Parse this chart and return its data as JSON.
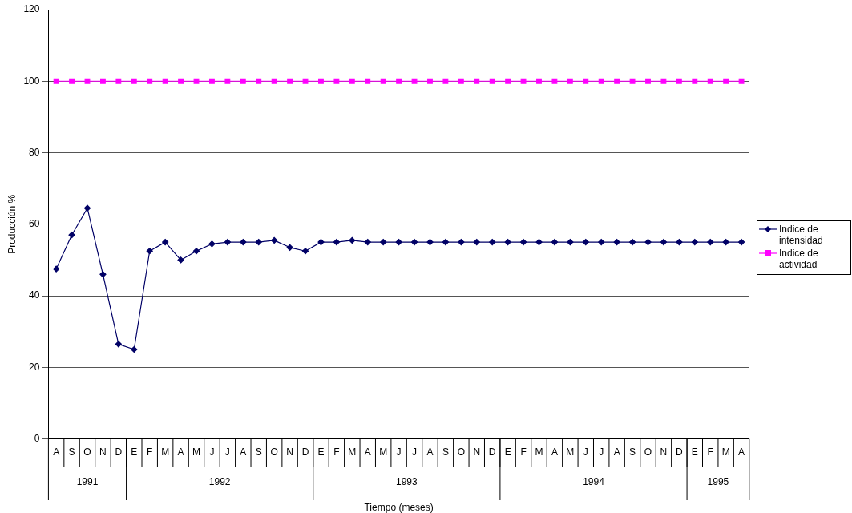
{
  "chart_data": {
    "type": "line",
    "xlabel": "Tiempo (meses)",
    "ylabel": "Producción %",
    "categories": [
      "A",
      "S",
      "O",
      "N",
      "D",
      "E",
      "F",
      "M",
      "A",
      "M",
      "J",
      "J",
      "A",
      "S",
      "O",
      "N",
      "D",
      "E",
      "F",
      "M",
      "A",
      "M",
      "J",
      "J",
      "A",
      "S",
      "O",
      "N",
      "D",
      "E",
      "F",
      "M",
      "A",
      "M",
      "J",
      "J",
      "A",
      "S",
      "O",
      "N",
      "D",
      "E",
      "F",
      "M",
      "A"
    ],
    "series": [
      {
        "name": "Indice de intensidad",
        "color": "#000066",
        "marker": "diamond",
        "values": [
          47.5,
          57,
          64.5,
          46,
          26.5,
          25,
          52.5,
          55,
          50,
          52.5,
          54.5,
          55,
          55,
          55,
          55.5,
          53.5,
          52.5,
          55,
          55,
          55.5,
          55,
          55,
          55,
          55,
          55,
          55,
          55,
          55,
          55,
          55,
          55,
          55,
          55,
          55,
          55,
          55,
          55,
          55,
          55,
          55,
          55,
          55,
          55,
          55,
          55
        ]
      },
      {
        "name": "Indice de actividad",
        "color": "#ff00ff",
        "marker": "square",
        "values": [
          100,
          100,
          100,
          100,
          100,
          100,
          100,
          100,
          100,
          100,
          100,
          100,
          100,
          100,
          100,
          100,
          100,
          100,
          100,
          100,
          100,
          100,
          100,
          100,
          100,
          100,
          100,
          100,
          100,
          100,
          100,
          100,
          100,
          100,
          100,
          100,
          100,
          100,
          100,
          100,
          100,
          100,
          100,
          100,
          100
        ]
      }
    ],
    "annotations": [
      "1991",
      "1992",
      "1993",
      "1994",
      "1995"
    ],
    "ylim": [
      0,
      120
    ],
    "yticks": [
      0,
      20,
      40,
      60,
      80,
      100,
      120
    ],
    "grid": "y",
    "legend": "right",
    "line_style": "solid"
  }
}
